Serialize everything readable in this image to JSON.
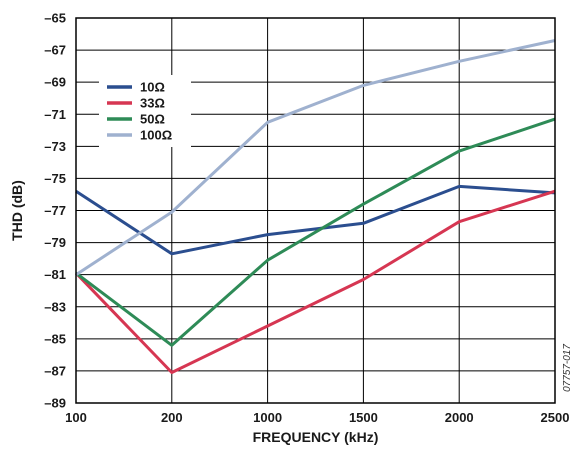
{
  "chart_data": {
    "type": "line",
    "xlabel": "FREQUENCY (kHz)",
    "ylabel": "THD (dB)",
    "categories": [
      "100",
      "200",
      "1000",
      "1500",
      "2000",
      "2500"
    ],
    "ylim": [
      -89,
      -65
    ],
    "yticks": [
      -65,
      -67,
      -69,
      -71,
      -73,
      -75,
      -77,
      -79,
      -81,
      -83,
      -85,
      -87,
      -89
    ],
    "grid": true,
    "legend_position": "top-left",
    "figure_id": "07757-017",
    "series": [
      {
        "name": "10Ω",
        "color": "#2b4e8f",
        "values": [
          -75.8,
          -79.7,
          -78.5,
          -77.8,
          -75.5,
          -75.9
        ]
      },
      {
        "name": "33Ω",
        "color": "#d63652",
        "values": [
          -80.9,
          -87.1,
          -84.2,
          -81.3,
          -77.7,
          -75.8
        ]
      },
      {
        "name": "50Ω",
        "color": "#2e8b57",
        "values": [
          -80.9,
          -85.4,
          -80.1,
          -76.6,
          -73.3,
          -71.3
        ]
      },
      {
        "name": "100Ω",
        "color": "#9fb1cf",
        "values": [
          -81.0,
          -77.1,
          -71.5,
          -69.2,
          -67.7,
          -66.4
        ]
      }
    ]
  }
}
